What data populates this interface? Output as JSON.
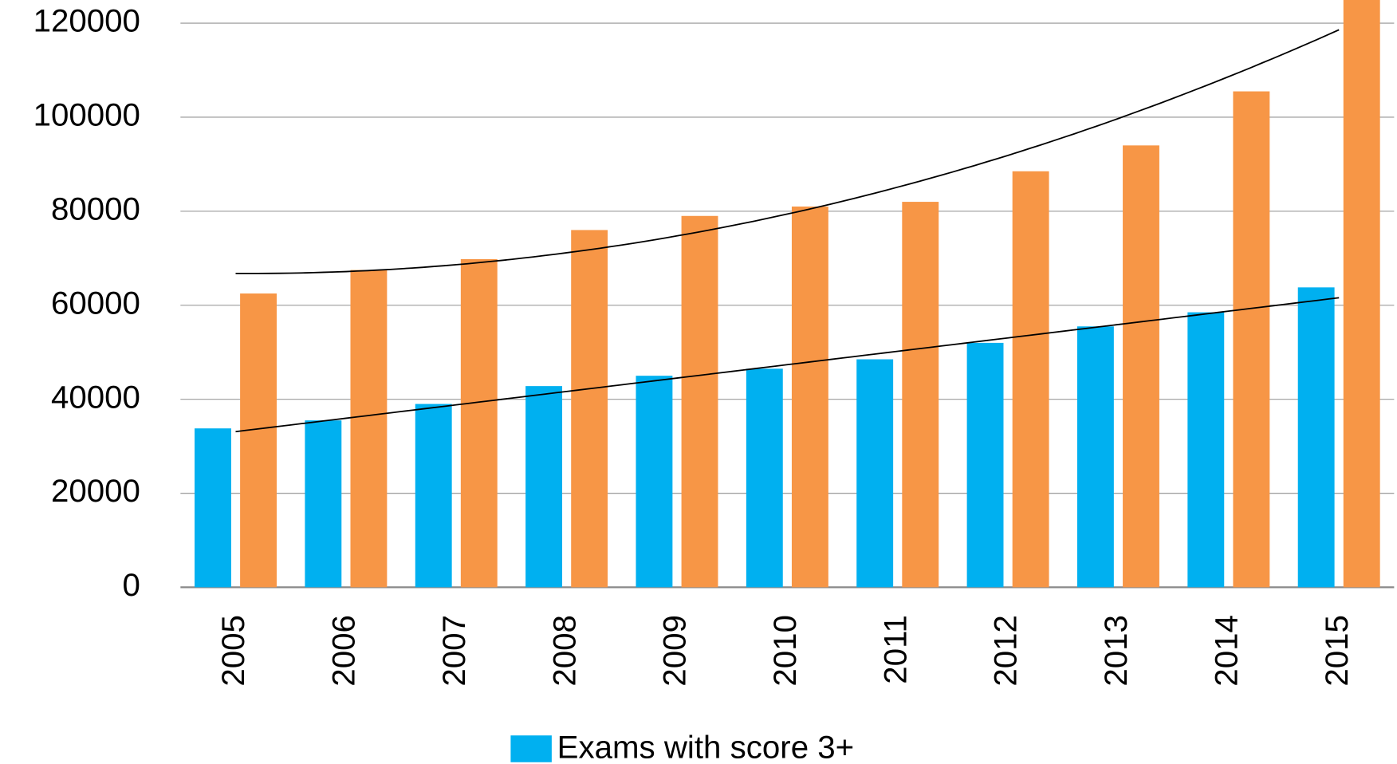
{
  "chart_data": {
    "type": "bar",
    "categories": [
      "2005",
      "2006",
      "2007",
      "2008",
      "2009",
      "2010",
      "2011",
      "2012",
      "2013",
      "2014",
      "2015"
    ],
    "series": [
      {
        "name": "Exams with score 3+",
        "color": "#00b0f0",
        "values": [
          33800,
          35500,
          39000,
          42800,
          45000,
          46500,
          48500,
          52000,
          55500,
          58500,
          63800
        ],
        "trendline": "linear"
      },
      {
        "color": "#f79646",
        "values": [
          62500,
          67500,
          69800,
          76000,
          79000,
          81000,
          82000,
          88500,
          94000,
          105500,
          126000
        ],
        "trendline": "polynomial"
      }
    ],
    "ylim": [
      0,
      124900
    ],
    "yticks": [
      0,
      20000,
      40000,
      60000,
      80000,
      100000,
      120000
    ],
    "grid": true,
    "legend": "bottom"
  }
}
